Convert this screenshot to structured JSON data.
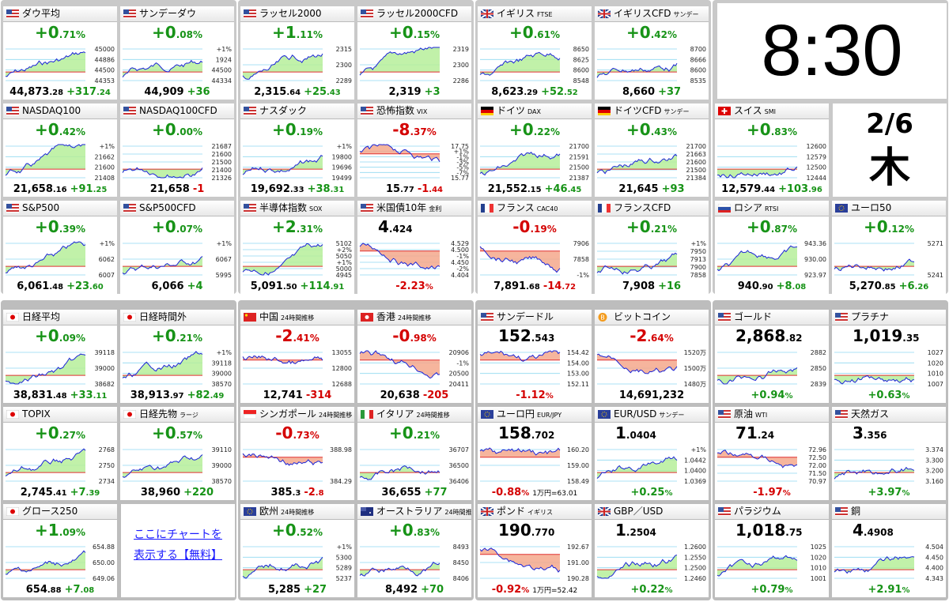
{
  "clock": {
    "time": "8:30",
    "date": "2/6",
    "weekday": "木"
  },
  "ad": {
    "lines": [
      "ここにチャートを",
      "表示する【無料】"
    ]
  },
  "cards": [
    {
      "flag": "us",
      "name": "ダウ平均",
      "layout": "pct",
      "big": "+0.71",
      "unit": "%",
      "axis": [
        "45000",
        "44886",
        "44500",
        "44353"
      ],
      "price": "44,873.28",
      "change": "+317.24"
    },
    {
      "flag": "us",
      "name": "サンデーダウ",
      "layout": "pct",
      "big": "+0.08",
      "unit": "%",
      "axis": [
        "+1%",
        "1924",
        "44500",
        "44334"
      ],
      "price": "44,909",
      "change": "+36"
    },
    {
      "flag": "us",
      "name": "NASDAQ100",
      "layout": "pct",
      "big": "+0.42",
      "unit": "%",
      "axis": [
        "+1%",
        "21662",
        "21600",
        "21408"
      ],
      "price": "21,658.16",
      "change": "+91.25"
    },
    {
      "flag": "us",
      "name": "NASDAQ100CFD",
      "layout": "pct",
      "big": "+0.00",
      "unit": "%",
      "axis": [
        "21687",
        "21600",
        "21500",
        "21400",
        "21326"
      ],
      "price": "21,658",
      "change": "-1"
    },
    {
      "flag": "us",
      "name": "S&P500",
      "layout": "pct",
      "big": "+0.39",
      "unit": "%",
      "axis": [
        "+1%",
        "6062",
        "6007"
      ],
      "price": "6,061.48",
      "change": "+23.60"
    },
    {
      "flag": "us",
      "name": "S&P500CFD",
      "layout": "pct",
      "big": "+0.07",
      "unit": "%",
      "axis": [
        "+1%",
        "6067",
        "5995"
      ],
      "price": "6,066",
      "change": "+4"
    },
    {
      "flag": "us",
      "name": "ラッセル2000",
      "layout": "pct",
      "big": "+1.11",
      "unit": "%",
      "axis": [
        "2315",
        "2300",
        "2289"
      ],
      "price": "2,315.64",
      "change": "+25.43"
    },
    {
      "flag": "us",
      "name": "ラッセル2000CFD",
      "layout": "pct",
      "big": "+0.15",
      "unit": "%",
      "axis": [
        "2319",
        "2300",
        "2286"
      ],
      "price": "2,319",
      "change": "+3"
    },
    {
      "flag": "us",
      "name": "ナスダック",
      "layout": "pct",
      "big": "+0.19",
      "unit": "%",
      "axis": [
        "+1%",
        "19800",
        "19696",
        "19499"
      ],
      "price": "19,692.33",
      "change": "+38.31"
    },
    {
      "flag": "us",
      "name": "恐怖指数",
      "sub": "VIX",
      "layout": "pct",
      "big": "-8.37",
      "unit": "%",
      "axis": [
        "17.75",
        "+1%",
        "-1%",
        "-3%",
        "-5%",
        "-7%",
        "15.77"
      ],
      "price": "15.77",
      "change": "-1.44"
    },
    {
      "flag": "us",
      "name": "半導体指数",
      "sub": "SOX",
      "layout": "pct",
      "big": "+2.31",
      "unit": "%",
      "axis": [
        "5102",
        "+2%",
        "5050",
        "+1%",
        "5000",
        "4945"
      ],
      "price": "5,091.50",
      "change": "+114.91"
    },
    {
      "flag": "us",
      "name": "米国債10年",
      "sub": "金利",
      "layout": "price",
      "big": "4.424",
      "axis": [
        "4.529",
        "4.500",
        "-1%",
        "4.450",
        "-2%",
        "4.404"
      ],
      "bottom": "-2.23",
      "unit": "%"
    },
    {
      "flag": "gb",
      "name": "イギリス",
      "sub": "FTSE",
      "layout": "pct",
      "big": "+0.61",
      "unit": "%",
      "axis": [
        "8650",
        "8625",
        "8600",
        "8548"
      ],
      "price": "8,623.29",
      "change": "+52.52"
    },
    {
      "flag": "gb",
      "name": "イギリスCFD",
      "sub": "サンデー",
      "layout": "pct",
      "big": "+0.42",
      "unit": "%",
      "axis": [
        "8700",
        "8666",
        "8600",
        "8535"
      ],
      "price": "8,660",
      "change": "+37"
    },
    {
      "flag": "de",
      "name": "ドイツ",
      "sub": "DAX",
      "layout": "pct",
      "big": "+0.22",
      "unit": "%",
      "axis": [
        "21700",
        "21591",
        "21500",
        "21387"
      ],
      "price": "21,552.15",
      "change": "+46.45"
    },
    {
      "flag": "de",
      "name": "ドイツCFD",
      "sub": "サンデー",
      "layout": "pct",
      "big": "+0.43",
      "unit": "%",
      "axis": [
        "21700",
        "21663",
        "21600",
        "21500",
        "21384"
      ],
      "price": "21,645",
      "change": "+93"
    },
    {
      "flag": "fr",
      "name": "フランス",
      "sub": "CAC40",
      "layout": "pct",
      "big": "-0.19",
      "unit": "%",
      "axis": [
        "7906",
        "7858",
        "-1%"
      ],
      "price": "7,891.68",
      "change": "-14.72"
    },
    {
      "flag": "fr",
      "name": "フランスCFD",
      "layout": "pct",
      "big": "+0.21",
      "unit": "%",
      "axis": [
        "+1%",
        "7950",
        "7913",
        "7900",
        "7858"
      ],
      "price": "7,908",
      "change": "+16"
    },
    {
      "flag": "ch",
      "name": "スイス",
      "sub": "SMI",
      "layout": "pct",
      "big": "+0.83",
      "unit": "%",
      "axis": [
        "12600",
        "12579",
        "12500",
        "12444"
      ],
      "price": "12,579.44",
      "change": "+103.96"
    },
    {
      "flag": "ru",
      "name": "ロシア",
      "sub": "RTSI",
      "layout": "pct",
      "big": "+0.87",
      "unit": "%",
      "axis": [
        "943.36",
        "930.00",
        "923.97"
      ],
      "price": "940.90",
      "change": "+8.08"
    },
    {
      "flag": "eu",
      "name": "ユーロ50",
      "layout": "pct",
      "big": "+0.12",
      "unit": "%",
      "axis": [
        "5271",
        "5241"
      ],
      "price": "5,270.85",
      "change": "+6.26"
    },
    {
      "flag": "jp",
      "name": "日経平均",
      "layout": "pct",
      "big": "+0.09",
      "unit": "%",
      "axis": [
        "39118",
        "39000",
        "38682"
      ],
      "price": "38,831.48",
      "change": "+33.11"
    },
    {
      "flag": "jp",
      "name": "日経時間外",
      "layout": "pct",
      "big": "+0.21",
      "unit": "%",
      "axis": [
        "+1%",
        "39118",
        "39000",
        "38570"
      ],
      "price": "38,913.97",
      "change": "+82.49"
    },
    {
      "flag": "jp",
      "name": "TOPIX",
      "layout": "pct",
      "big": "+0.27",
      "unit": "%",
      "axis": [
        "2768",
        "2750",
        "2734"
      ],
      "price": "2,745.41",
      "change": "+7.39"
    },
    {
      "flag": "jp",
      "name": "日経先物",
      "sub": "ラージ",
      "layout": "pct",
      "big": "+0.57",
      "unit": "%",
      "axis": [
        "39110",
        "39000",
        "38570"
      ],
      "price": "38,960",
      "change": "+220"
    },
    {
      "flag": "jp",
      "name": "グロース250",
      "layout": "pct",
      "big": "+1.09",
      "unit": "%",
      "axis": [
        "654.88",
        "650.00",
        "649.06"
      ],
      "price": "654.88",
      "change": "+7.08"
    },
    {
      "flag": "cn",
      "name": "中国",
      "sub": "24時間推移",
      "layout": "pct",
      "big": "-2.41",
      "unit": "%",
      "axis": [
        "13055",
        "12800",
        "12688"
      ],
      "price": "12,741",
      "change": "-314"
    },
    {
      "flag": "hk",
      "name": "香港",
      "sub": "24時間推移",
      "layout": "pct",
      "big": "-0.98",
      "unit": "%",
      "axis": [
        "20906",
        "-1%",
        "20500",
        "20411"
      ],
      "price": "20,638",
      "change": "-205"
    },
    {
      "flag": "sg",
      "name": "シンガポール",
      "sub": "24時間推移",
      "layout": "pct",
      "big": "-0.73",
      "unit": "%",
      "axis": [
        "388.98",
        "384.29"
      ],
      "price": "385.3",
      "change": "-2.8"
    },
    {
      "flag": "it",
      "name": "イタリア",
      "sub": "24時間推移",
      "layout": "pct",
      "big": "+0.21",
      "unit": "%",
      "axis": [
        "36707",
        "36500",
        "36406"
      ],
      "price": "36,655",
      "change": "+77"
    },
    {
      "flag": "eu",
      "name": "欧州",
      "sub": "24時間推移",
      "layout": "pct",
      "big": "+0.52",
      "unit": "%",
      "axis": [
        "+1%",
        "5300",
        "5289",
        "5237"
      ],
      "price": "5,285",
      "change": "+27"
    },
    {
      "flag": "au",
      "name": "オーストラリア",
      "sub": "24時間推移",
      "layout": "pct",
      "big": "+0.83",
      "unit": "%",
      "axis": [
        "8493",
        "8450",
        "8406"
      ],
      "price": "8,492",
      "change": "+70"
    },
    {
      "flag": "us",
      "name": "サンデードル",
      "layout": "price",
      "big": "152.543",
      "axis": [
        "154.42",
        "154.00",
        "153.00",
        "152.11"
      ],
      "bottom": "-1.12",
      "unit": "%"
    },
    {
      "flag": "btc",
      "name": "ビットコイン",
      "layout": "pct",
      "big": "-2.64",
      "unit": "%",
      "axis": [
        "1520万",
        "1500万",
        "1480万"
      ],
      "price": "14,691,232"
    },
    {
      "flag": "eu",
      "name": "ユーロ円",
      "sub": "EUR/JPY",
      "layout": "price",
      "big": "158.702",
      "axis": [
        "160.20",
        "159.00",
        "158.49"
      ],
      "bottom": "-0.88",
      "unit": "%",
      "extra": "1万円=63.01"
    },
    {
      "flag": "eu",
      "name": "EUR/USD",
      "sub": "サンデー",
      "layout": "price",
      "big": "1.0404",
      "axis": [
        "+1%",
        "1.0442",
        "1.0400",
        "1.0369"
      ],
      "bottom": "+0.25",
      "unit": "%"
    },
    {
      "flag": "gb",
      "name": "ポンド",
      "sub": "イギリス",
      "layout": "price",
      "big": "190.770",
      "axis": [
        "192.67",
        "191.00",
        "190.28"
      ],
      "bottom": "-0.92",
      "unit": "%",
      "extra": "1万円=52.42"
    },
    {
      "flag": "gb",
      "name": "GBP／USD",
      "layout": "price",
      "big": "1.2504",
      "axis": [
        "1.2600",
        "1.2550",
        "1.2500",
        "1.2460"
      ],
      "bottom": "+0.22",
      "unit": "%"
    },
    {
      "flag": "us",
      "name": "ゴールド",
      "layout": "price",
      "big": "2,868.82",
      "axis": [
        "2882",
        "2850",
        "2839"
      ],
      "bottom": "+0.94",
      "unit": "%"
    },
    {
      "flag": "us",
      "name": "プラチナ",
      "layout": "price",
      "big": "1,019.35",
      "axis": [
        "1027",
        "1020",
        "1010",
        "1007"
      ],
      "bottom": "+0.63",
      "unit": "%"
    },
    {
      "flag": "us",
      "name": "原油",
      "sub": "WTI",
      "layout": "price",
      "big": "71.24",
      "axis": [
        "72.96",
        "72.50",
        "72.00",
        "71.50",
        "70.97"
      ],
      "bottom": "-1.97",
      "unit": "%"
    },
    {
      "flag": "us",
      "name": "天然ガス",
      "layout": "price",
      "big": "3.356",
      "axis": [
        "3.374",
        "3.300",
        "3.200",
        "3.160"
      ],
      "bottom": "+3.97",
      "unit": "%"
    },
    {
      "flag": "us",
      "name": "パラジウム",
      "layout": "price",
      "big": "1,018.75",
      "axis": [
        "1025",
        "1020",
        "1010",
        "1001"
      ],
      "bottom": "+0.79",
      "unit": "%"
    },
    {
      "flag": "us",
      "name": "銅",
      "layout": "price",
      "big": "4.4908",
      "axis": [
        "4.504",
        "4.450",
        "4.400",
        "4.343"
      ],
      "bottom": "+2.91",
      "unit": "%"
    }
  ]
}
